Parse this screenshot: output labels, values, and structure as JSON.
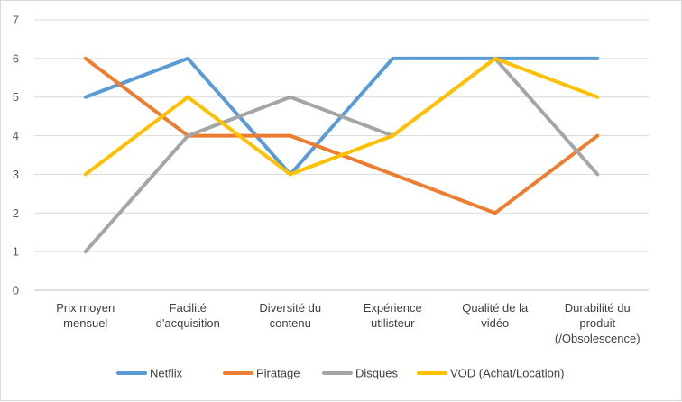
{
  "chart_data": {
    "type": "line",
    "title": "",
    "xlabel": "",
    "ylabel": "",
    "ylim": [
      0,
      7
    ],
    "yticks": [
      0,
      1,
      2,
      3,
      4,
      5,
      6,
      7
    ],
    "grid": true,
    "legend_position": "bottom",
    "categories": [
      [
        "Prix moyen",
        "mensuel"
      ],
      [
        "Facilité",
        "d'acquisition"
      ],
      [
        "Diversité du",
        "contenu"
      ],
      [
        "Expérience",
        "utilisteur"
      ],
      [
        "Qualité de la",
        "vidéo"
      ],
      [
        "Durabilité du",
        "produit",
        "(/Obsolescence)"
      ]
    ],
    "series": [
      {
        "name": "Netflix",
        "color": "#5b9bd5",
        "values": [
          5,
          6,
          3,
          6,
          6,
          6
        ]
      },
      {
        "name": "Piratage",
        "color": "#ed7d31",
        "values": [
          6,
          4,
          4,
          3,
          2,
          4
        ]
      },
      {
        "name": "Disques",
        "color": "#a5a5a5",
        "values": [
          1,
          4,
          5,
          4,
          6,
          3
        ]
      },
      {
        "name": "VOD (Achat/Location)",
        "color": "#ffc000",
        "values": [
          3,
          5,
          3,
          4,
          6,
          5
        ]
      }
    ]
  }
}
